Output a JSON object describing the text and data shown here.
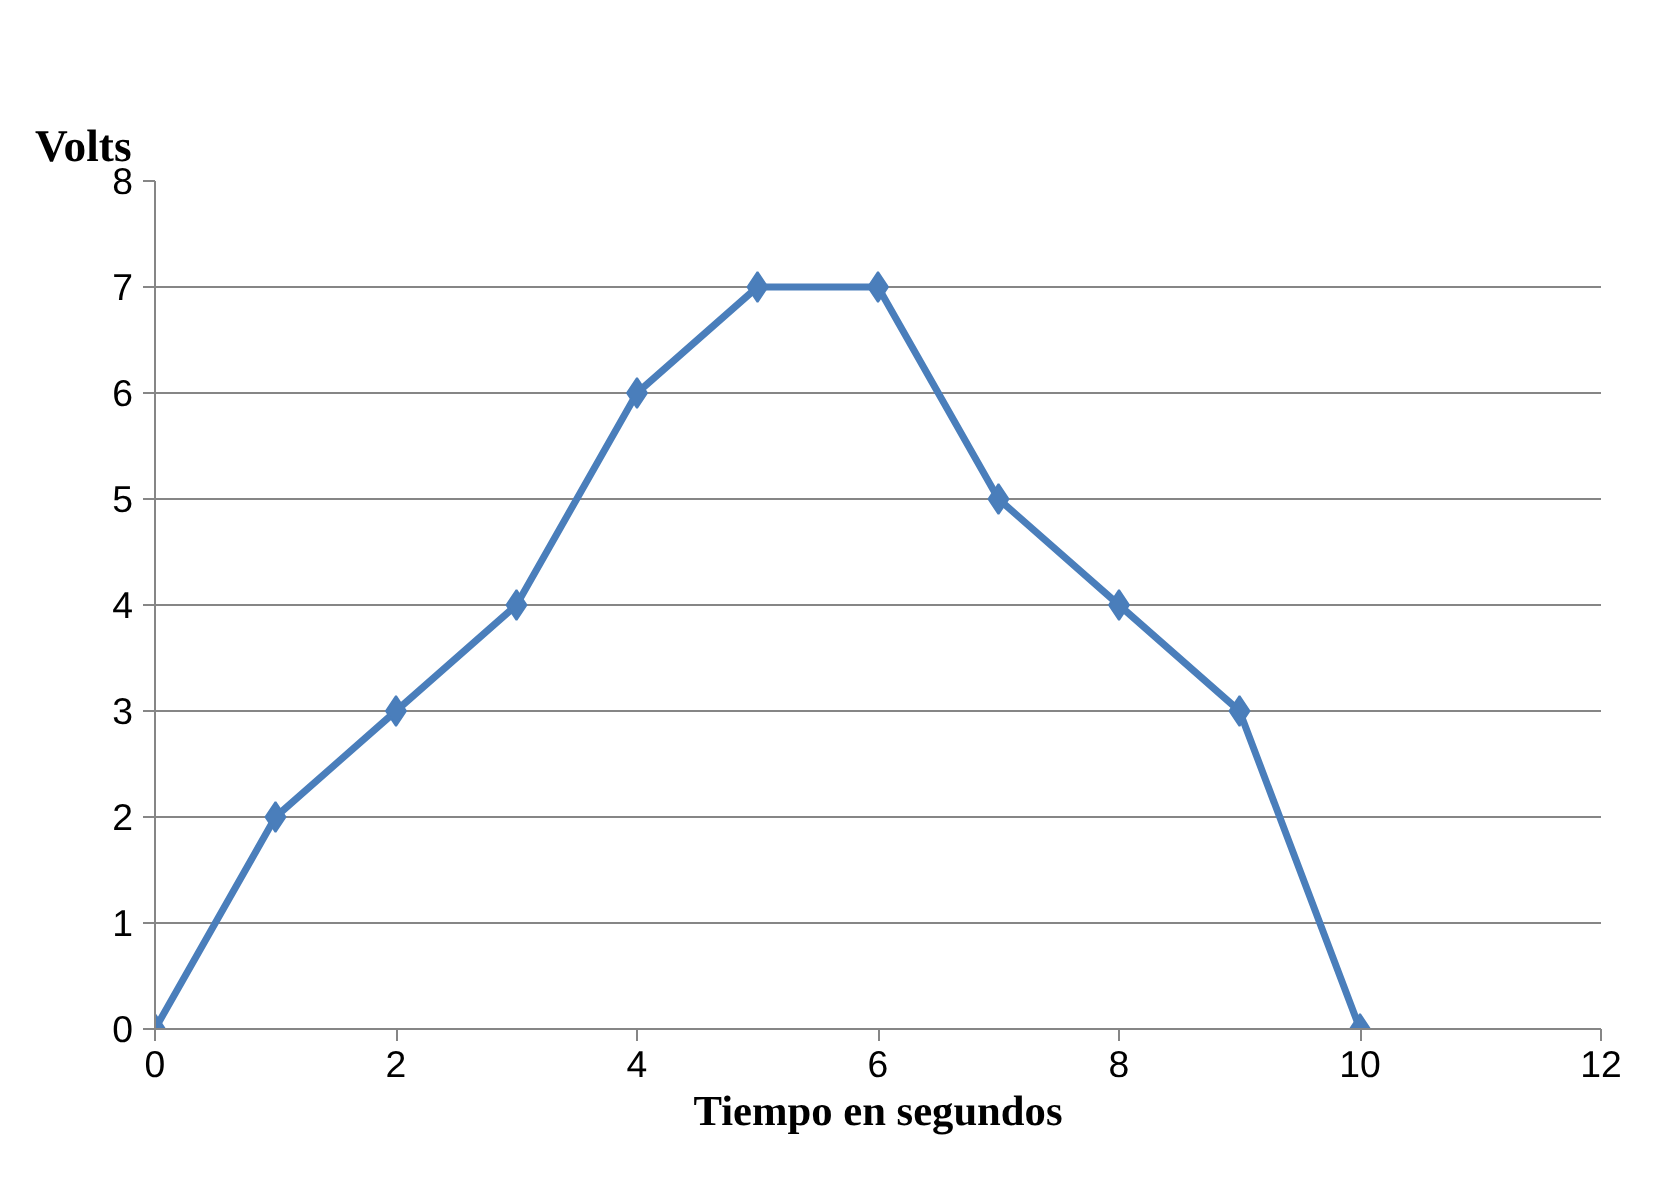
{
  "chart_data": {
    "type": "line",
    "ylabel": "Volts",
    "xlabel": "Tiempo en segundos",
    "x": [
      0,
      1,
      2,
      3,
      4,
      5,
      6,
      7,
      8,
      9,
      10
    ],
    "series": [
      {
        "color": "#4a7ebb",
        "values": [
          0,
          2,
          3,
          4,
          6,
          7,
          7,
          5,
          4,
          3,
          0
        ]
      }
    ],
    "xlim": [
      0,
      12
    ],
    "xticks": [
      0,
      2,
      4,
      6,
      8,
      10,
      12
    ],
    "ylim": [
      0,
      8
    ],
    "yticks": [
      0,
      1,
      2,
      3,
      4,
      5,
      6,
      7,
      8
    ],
    "grid": "y",
    "marker": "diamond",
    "line_style": "solid"
  }
}
